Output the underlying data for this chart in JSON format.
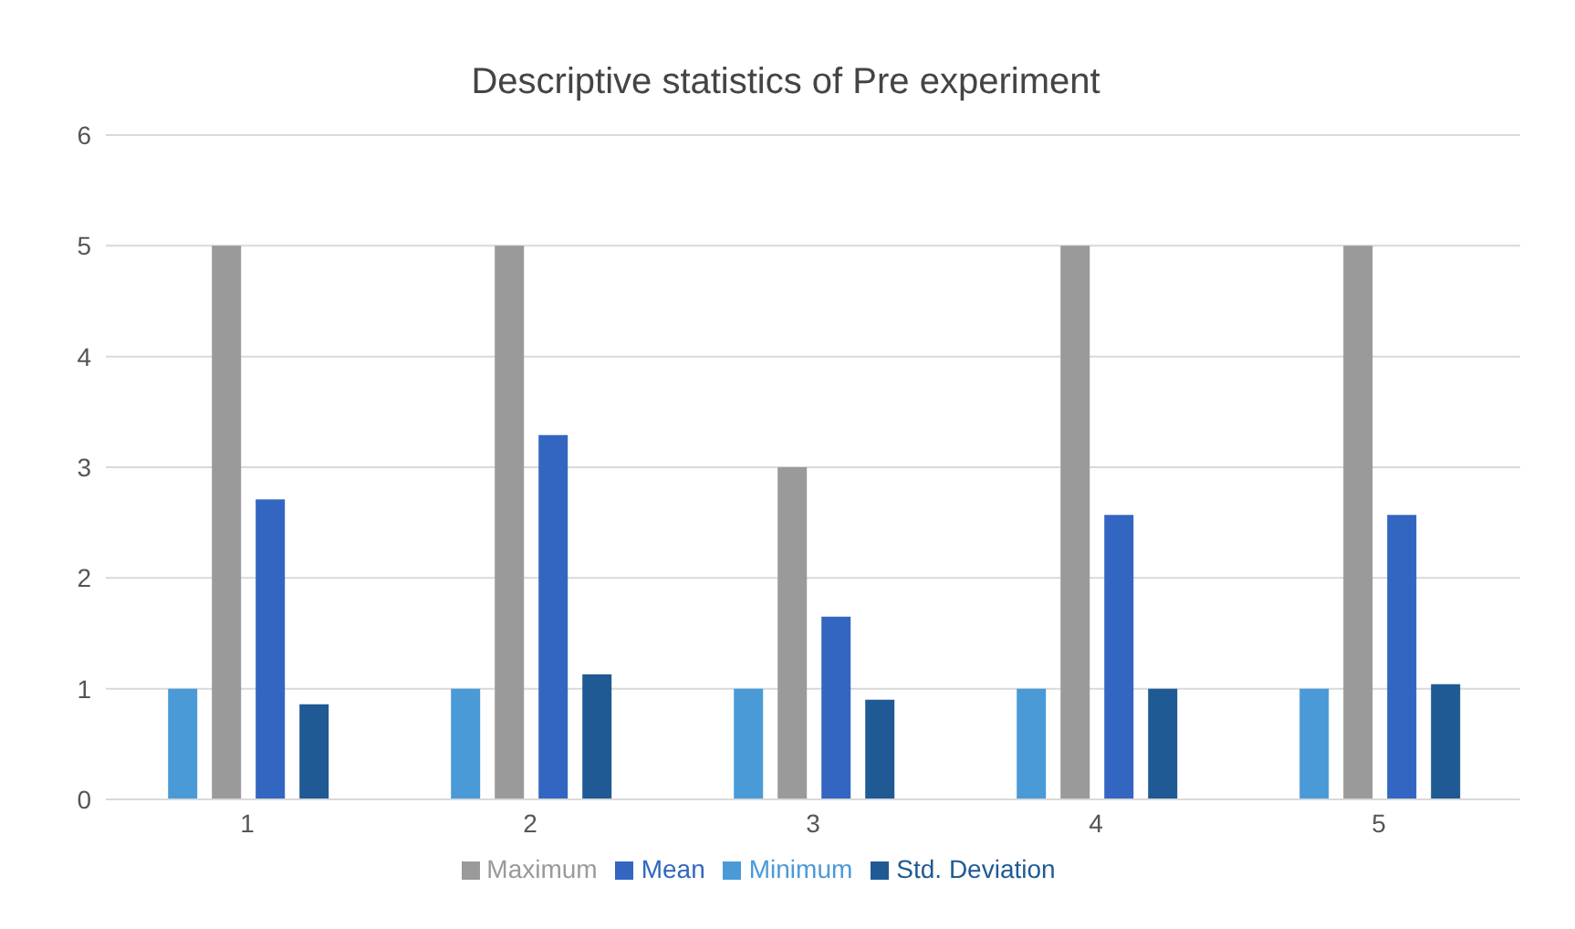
{
  "chart_data": {
    "type": "bar",
    "title": "Descriptive statistics of Pre experiment",
    "categories": [
      "1",
      "2",
      "3",
      "4",
      "5"
    ],
    "series": [
      {
        "name": "Minimum",
        "color": "#4a9ad8",
        "values": [
          1,
          1,
          1,
          1,
          1
        ]
      },
      {
        "name": "Maximum",
        "color": "#9a9a9a",
        "values": [
          5,
          5,
          3,
          5,
          5
        ]
      },
      {
        "name": "Mean",
        "color": "#3366c0",
        "values": [
          2.71,
          3.29,
          1.65,
          2.57,
          2.57
        ]
      },
      {
        "name": "Std. Deviation",
        "color": "#1f5a94",
        "values": [
          0.86,
          1.13,
          0.9,
          1.0,
          1.04
        ]
      }
    ],
    "ylim": [
      0,
      6
    ],
    "yticks": [
      0,
      1,
      2,
      3,
      4,
      5,
      6
    ],
    "grid": "y",
    "legend": "bottom"
  }
}
